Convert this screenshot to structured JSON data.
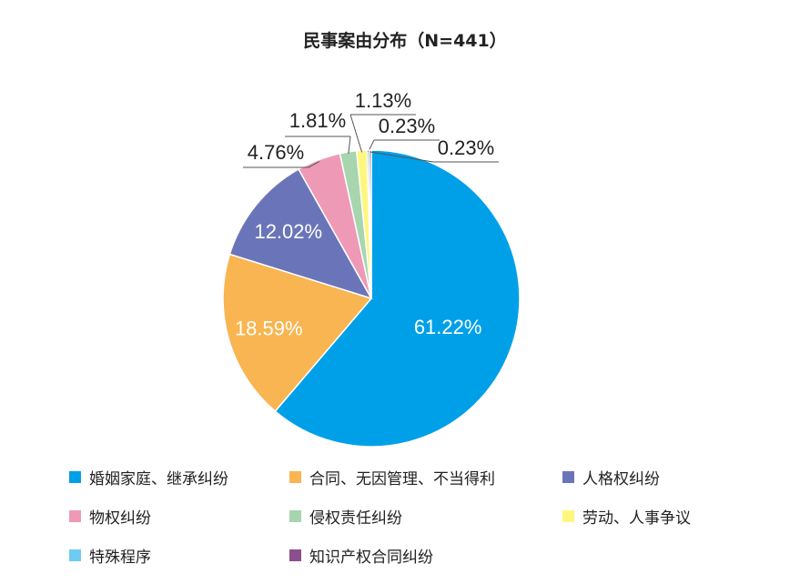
{
  "chart_data": {
    "type": "pie",
    "title": "民事案由分布（N=441）",
    "legend_position": "bottom",
    "slices": [
      {
        "name": "婚姻家庭、继承纠纷",
        "value": 61.22,
        "label": "61.22%",
        "color": "#00a0e9"
      },
      {
        "name": "合同、无因管理、不当得利",
        "value": 18.59,
        "label": "18.59%",
        "color": "#f8b551"
      },
      {
        "name": "人格权纠纷",
        "value": 12.02,
        "label": "12.02%",
        "color": "#6a75b9"
      },
      {
        "name": "物权纠纷",
        "value": 4.76,
        "label": "4.76%",
        "color": "#ee9ab6"
      },
      {
        "name": "侵权责任纠纷",
        "value": 1.81,
        "label": "1.81%",
        "color": "#a6d5ae"
      },
      {
        "name": "劳动、人事争议",
        "value": 1.13,
        "label": "1.13%",
        "color": "#fff67f"
      },
      {
        "name": "特殊程序",
        "value": 0.23,
        "label": "0.23%",
        "color": "#6ecbf2"
      },
      {
        "name": "知识产权合同纠纷",
        "value": 0.23,
        "label": "0.23%",
        "color": "#8a4f8e"
      }
    ]
  }
}
